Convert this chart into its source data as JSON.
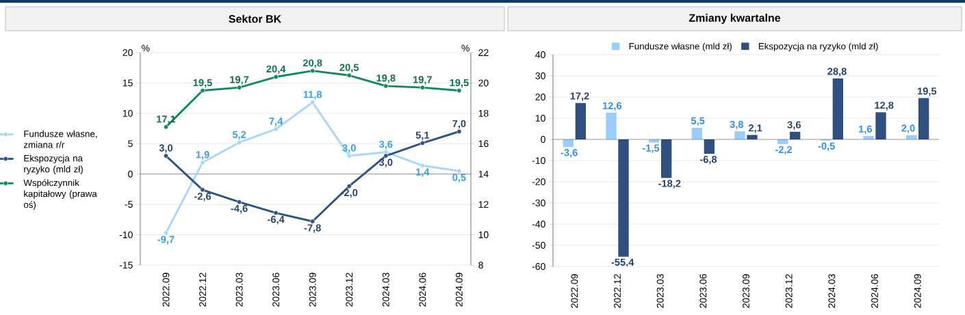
{
  "chart_data": [
    {
      "type": "line",
      "title": "Sektor BK",
      "ylabel": "%",
      "y2label": "%",
      "categories": [
        "2022.09",
        "2022.12",
        "2023.03",
        "2023.06",
        "2023.09",
        "2023.12",
        "2024.03",
        "2024.06",
        "2024.09"
      ],
      "ylim": [
        -15,
        20
      ],
      "yticks": [
        -15,
        -10,
        -5,
        0,
        5,
        10,
        15,
        20
      ],
      "y2lim": [
        8,
        22
      ],
      "y2ticks": [
        8,
        10,
        12,
        14,
        16,
        18,
        20,
        22
      ],
      "grid": "y",
      "legend": "left",
      "marker": "circle",
      "series": [
        {
          "name": "Fundusze własne, zmiana r/r",
          "color": "#a9d7f5",
          "values": [
            -9.7,
            1.9,
            5.2,
            7.4,
            11.8,
            3.0,
            3.6,
            1.4,
            0.5
          ],
          "value_labels": [
            "-9,7",
            "1,9",
            "5,2",
            "7,4",
            "11,8",
            "3,0",
            "3,6",
            "1,4",
            "0,5"
          ]
        },
        {
          "name": "Ekspozycja na ryzyko (mld zł)",
          "color": "#2e5283",
          "values": [
            3.0,
            -2.6,
            -4.6,
            -6.4,
            -7.8,
            -2.0,
            3.0,
            5.1,
            7.0
          ],
          "value_labels": [
            "3,0",
            "-2,6",
            "-4,6",
            "-6,4",
            "-7,8",
            "-2,0",
            "3,0",
            "5,1",
            "7,0"
          ]
        },
        {
          "name": "Współczynnik kapitałowy (prawa oś)",
          "color": "#0f8a5a",
          "axis": "y2",
          "values": [
            17.1,
            19.5,
            19.7,
            20.4,
            20.8,
            20.5,
            19.8,
            19.7,
            19.5
          ],
          "value_labels": [
            "17,1",
            "19,5",
            "19,7",
            "20,4",
            "20,8",
            "20,5",
            "19,8",
            "19,7",
            "19,5"
          ]
        }
      ]
    },
    {
      "type": "bar",
      "title": "Zmiany kwartalne",
      "categories": [
        "2022.09",
        "2022.12",
        "2023.03",
        "2023.06",
        "2023.09",
        "2023.12",
        "2024.03",
        "2024.06",
        "2024.09"
      ],
      "ylim": [
        -60,
        40
      ],
      "yticks": [
        -60,
        -50,
        -40,
        -30,
        -20,
        -10,
        0,
        10,
        20,
        30,
        40
      ],
      "grid": "y",
      "legend": "top",
      "series": [
        {
          "name": "Fundusze własne (mld zł)",
          "color": "#99ccff",
          "values": [
            -3.6,
            12.6,
            -1.5,
            5.5,
            3.8,
            -2.2,
            -0.5,
            1.6,
            2.0
          ],
          "value_labels": [
            "-3,6",
            "12,6",
            "-1,5",
            "5,5",
            "3,8",
            "-2,2",
            "-0,5",
            "1,6",
            "2,0"
          ]
        },
        {
          "name": "Ekspozycja na ryzyko (mld zł)",
          "color": "#2f4f80",
          "values": [
            17.2,
            -55.4,
            -18.2,
            -6.8,
            2.1,
            3.6,
            28.8,
            12.8,
            19.5
          ],
          "value_labels": [
            "17,2",
            "-55,4",
            "-18,2",
            "-6,8",
            "2,1",
            "3,6",
            "28,8",
            "12,8",
            "19,5"
          ]
        }
      ]
    }
  ]
}
